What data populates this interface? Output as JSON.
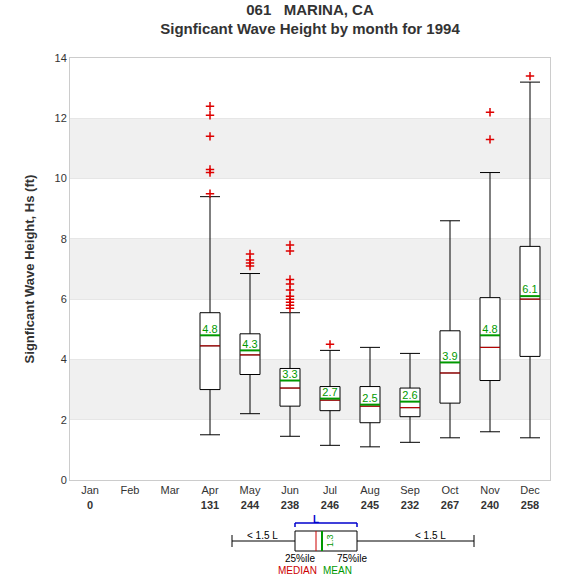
{
  "chart_data": {
    "type": "box",
    "title": "061   MARINA, CA",
    "subtitle": "Signficant Wave Height by month for 1994",
    "y_label": "Signficant Wave Height, Hs (ft)",
    "categories": [
      "Jan",
      "Feb",
      "Mar",
      "Apr",
      "May",
      "Jun",
      "Jul",
      "Aug",
      "Sep",
      "Oct",
      "Nov",
      "Dec"
    ],
    "counts": [
      0,
      null,
      null,
      131,
      244,
      238,
      246,
      245,
      232,
      267,
      240,
      258
    ],
    "whisker_low": [
      null,
      null,
      null,
      1.5,
      2.2,
      1.45,
      1.15,
      1.1,
      1.25,
      1.4,
      1.6,
      1.4
    ],
    "q1": [
      null,
      null,
      null,
      3.0,
      3.5,
      2.45,
      2.3,
      1.9,
      2.1,
      2.55,
      3.3,
      4.1
    ],
    "median": [
      null,
      null,
      null,
      4.45,
      4.15,
      3.05,
      2.65,
      2.45,
      2.4,
      3.55,
      4.4,
      6.0
    ],
    "q3": [
      null,
      null,
      null,
      5.55,
      4.85,
      3.7,
      3.1,
      3.1,
      3.05,
      4.95,
      6.05,
      7.75
    ],
    "whisker_high": [
      null,
      null,
      null,
      9.4,
      6.85,
      5.55,
      4.3,
      4.4,
      4.2,
      8.6,
      10.2,
      13.2
    ],
    "mean": [
      null,
      null,
      null,
      4.8,
      4.3,
      3.3,
      2.7,
      2.5,
      2.6,
      3.9,
      4.8,
      6.1
    ],
    "outliers": [
      [],
      [],
      [],
      [
        9.5,
        10.2,
        10.3,
        11.4,
        12.1,
        12.4
      ],
      [
        7.1,
        7.2,
        7.3,
        7.5
      ],
      [
        5.7,
        5.8,
        5.9,
        6.0,
        6.1,
        6.3,
        6.5,
        6.65,
        7.6,
        7.8
      ],
      [
        4.5
      ],
      [],
      [],
      [],
      [
        11.3,
        12.2
      ],
      [
        13.4
      ]
    ],
    "ylim": [
      0,
      14
    ],
    "yticks": [
      0,
      2,
      4,
      6,
      8,
      10,
      12,
      14
    ],
    "grid": true,
    "data_labels": true,
    "key": {
      "length": "L",
      "whisker": "< 1.5 L",
      "q1": "25%ile",
      "q3": "75%ile",
      "median": "MEDIAN",
      "mean": "MEAN",
      "mean_value": "1.3"
    }
  }
}
